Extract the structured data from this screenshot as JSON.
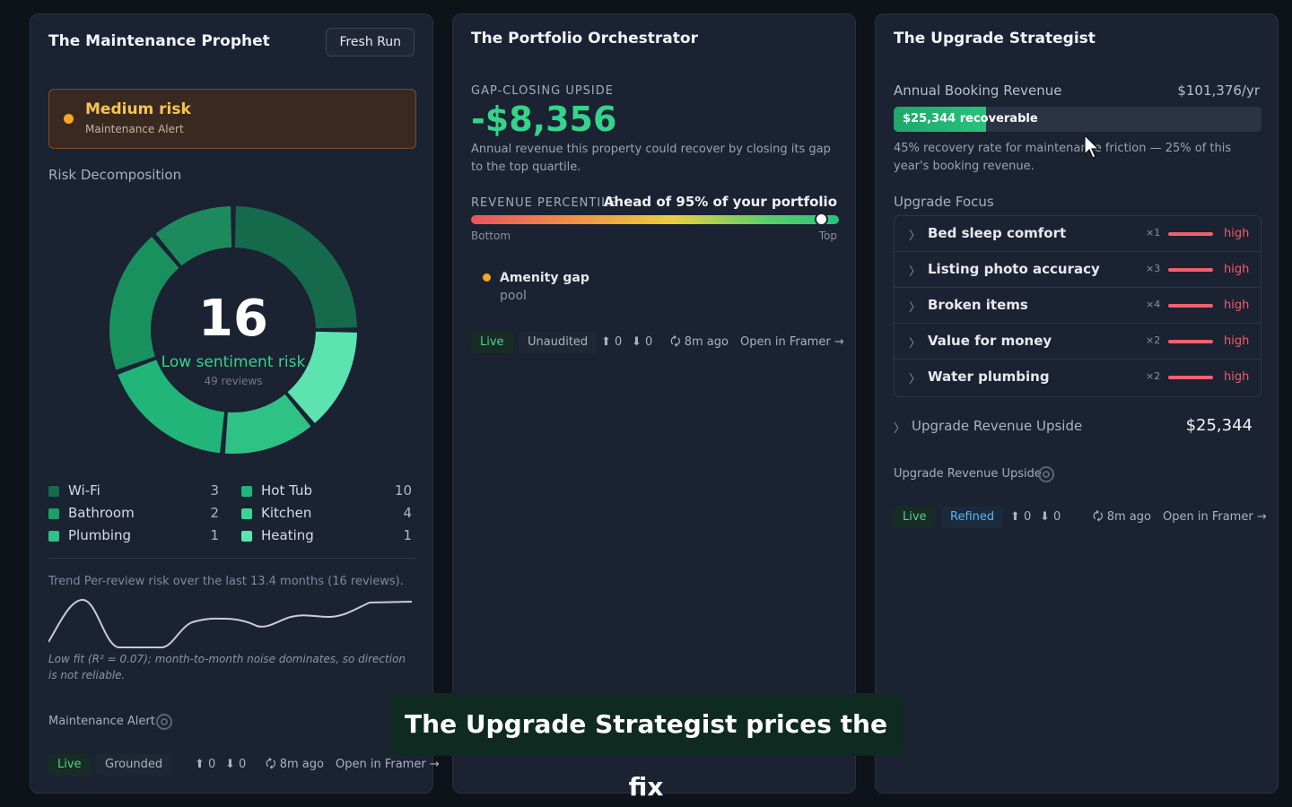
{
  "colors": {
    "background": "#0e1219",
    "card": "#1b2232",
    "accent_green": "#35d48a",
    "alert_orange": "#f6a623",
    "risk_red": "#ef5d67",
    "donut_segments": [
      "#166a4c",
      "#5de3b0",
      "#2fc285",
      "#21b57a",
      "#19915f",
      "#1d8a5d"
    ]
  },
  "card1": {
    "title": "The Maintenance Prophet",
    "fresh_run": "Fresh Run",
    "alert": {
      "title": "Medium risk",
      "subtitle": "Maintenance Alert"
    },
    "risk_label": "Risk Decomposition",
    "donut": {
      "center_value": "16",
      "center_label": "Low sentiment risk",
      "center_sub": "49 reviews"
    },
    "legend": [
      {
        "label": "Wi-Fi",
        "count": "3",
        "color": "#166a4c"
      },
      {
        "label": "Bathroom",
        "count": "2",
        "color": "#1f9d6a"
      },
      {
        "label": "Plumbing",
        "count": "1",
        "color": "#2fc285"
      },
      {
        "label": "Hot Tub",
        "count": "10",
        "color": "#21b57a"
      },
      {
        "label": "Kitchen",
        "count": "4",
        "color": "#3ad497"
      },
      {
        "label": "Heating",
        "count": "1",
        "color": "#5de3b0"
      }
    ],
    "trend_text": "Trend  Per-review risk over the last 13.4 months (16 reviews).",
    "trend_note": "Low fit (R² = 0.07); month-to-month noise dominates, so direction is not reliable.",
    "footer_label": "Maintenance Alert",
    "status": {
      "live": "Live",
      "tag": "Grounded",
      "up": "⬆ 0",
      "down": "⬇ 0",
      "time": "🗘 8m ago",
      "open": "Open in Framer →"
    }
  },
  "card2": {
    "title": "The Portfolio Orchestrator",
    "kicker": "GAP-CLOSING UPSIDE",
    "amount": "-$8,356",
    "description": "Annual revenue this property could recover by closing its gap to the top quartile.",
    "percentile_label": "REVENUE PERCENTILE",
    "percentile_text": "Ahead of 95% of your portfolio",
    "percentile_value": 95,
    "bottom_label": "Bottom",
    "top_label": "Top",
    "gap_title": "Amenity gap",
    "gap_sub": "pool",
    "status": {
      "live": "Live",
      "tag": "Unaudited",
      "up": "⬆ 0",
      "down": "⬇ 0",
      "time": "🗘 8m ago",
      "open": "Open in Framer →"
    }
  },
  "card3": {
    "title": "The Upgrade Strategist",
    "revenue_label": "Annual Booking Revenue",
    "revenue_value": "$101,376/yr",
    "recoverable_label": "$25,344 recoverable",
    "recoverable_fraction": 0.25,
    "recovery_text": "45% recovery rate for maintenance friction — 25% of this year's booking revenue.",
    "focus_label": "Upgrade Focus",
    "focus_items": [
      {
        "name": "Bed sleep comfort",
        "mult": "×1",
        "severity": "high"
      },
      {
        "name": "Listing photo accuracy",
        "mult": "×3",
        "severity": "high"
      },
      {
        "name": "Broken items",
        "mult": "×4",
        "severity": "high"
      },
      {
        "name": "Value for money",
        "mult": "×2",
        "severity": "high"
      },
      {
        "name": "Water plumbing",
        "mult": "×2",
        "severity": "high"
      }
    ],
    "upside_label": "Upgrade Revenue Upside",
    "upside_value": "$25,344",
    "footer_label": "Upgrade Revenue Upside",
    "status": {
      "live": "Live",
      "tag": "Refined",
      "up": "⬆ 0",
      "down": "⬇ 0",
      "time": "🗘 8m ago",
      "open": "Open in Framer →"
    }
  },
  "caption": "The Upgrade Strategist prices the fix"
}
